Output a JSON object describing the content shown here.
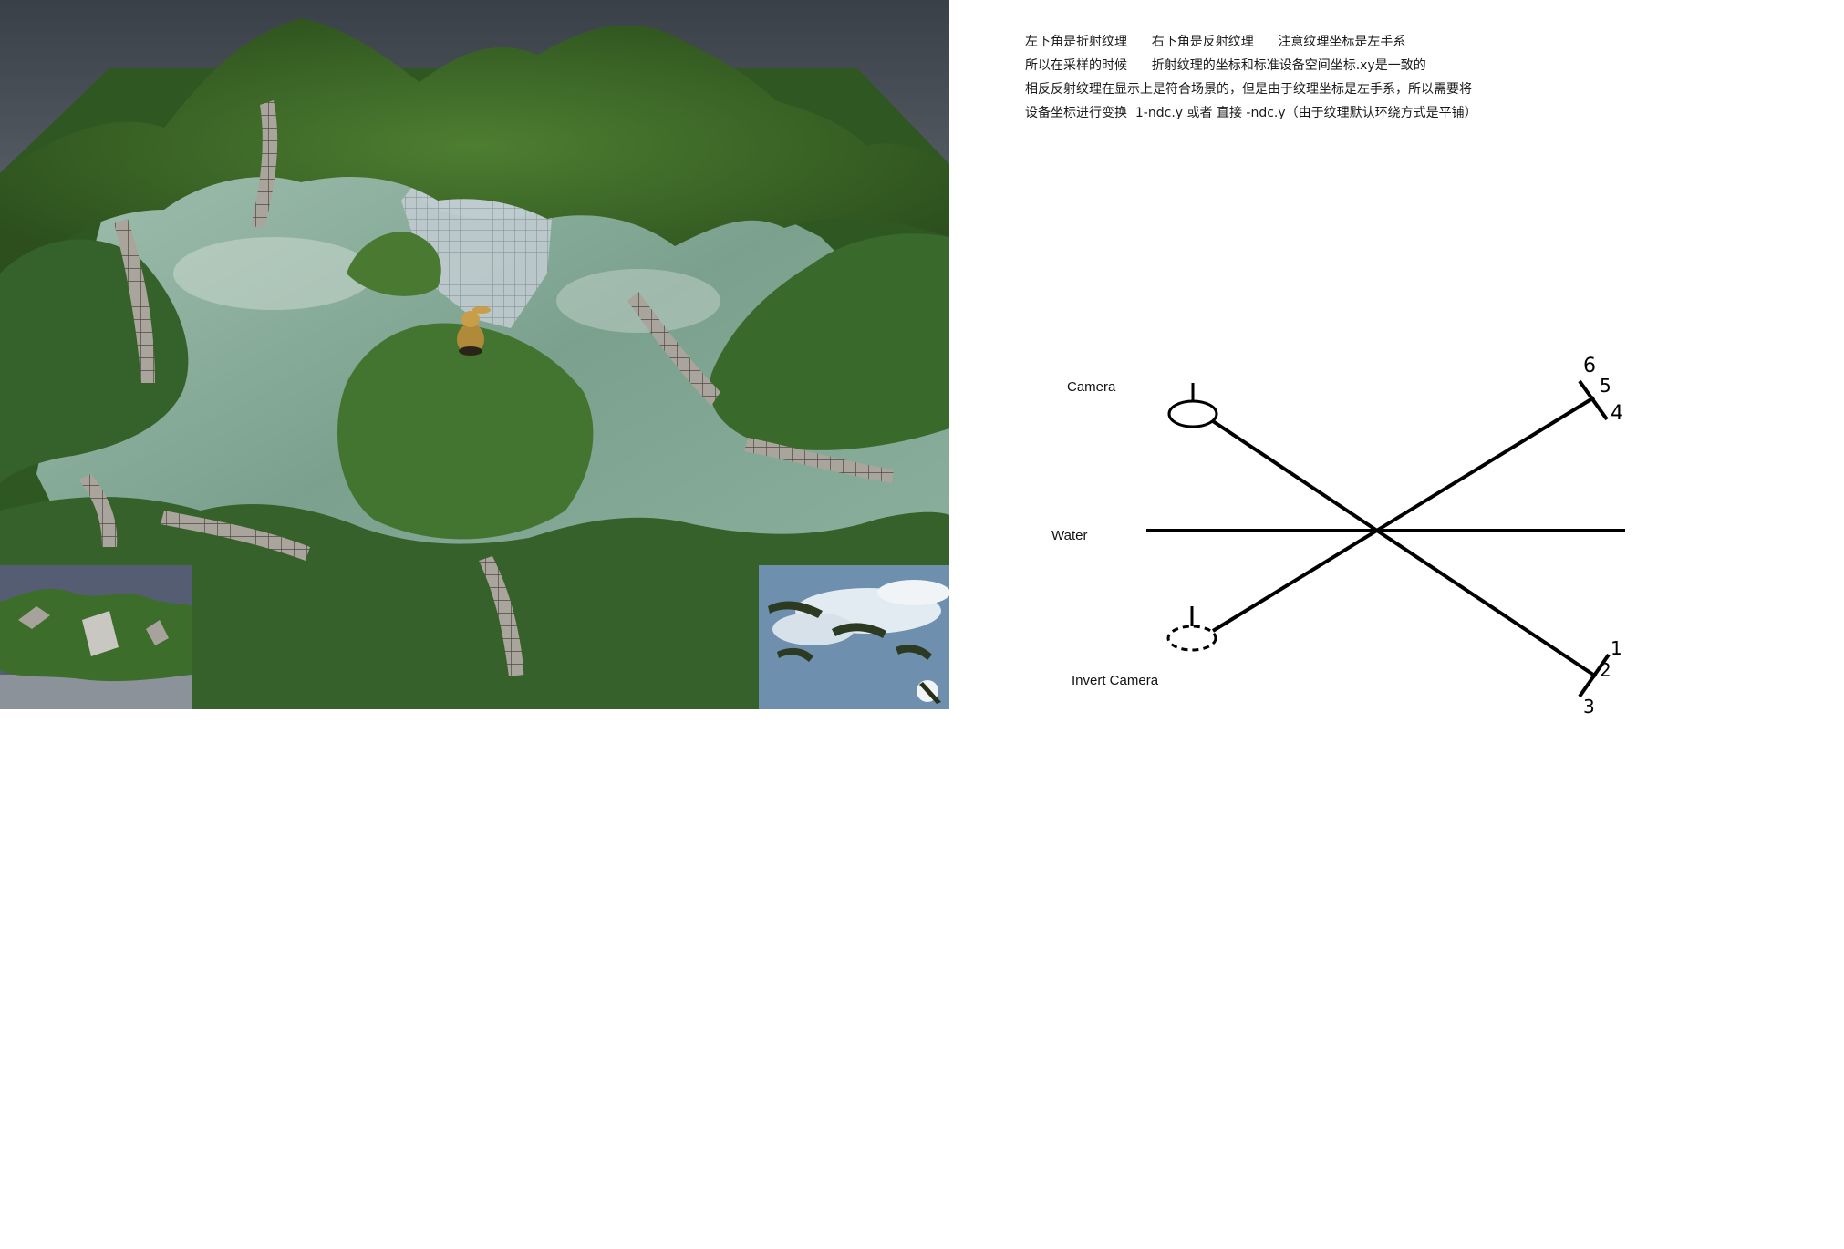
{
  "viewport": {
    "insets": {
      "refraction": "refraction-texture",
      "reflection": "reflection-texture"
    },
    "colors": {
      "grass": "#3f6d2a",
      "water": "#8fb2a2",
      "sky": "#5a646e",
      "rock": "#9c968c"
    }
  },
  "notes": {
    "lines": [
      "左下角是折射纹理      右下角是反射纹理      注意纹理坐标是左手系",
      "所以在采样的时候      折射纹理的坐标和标准设备空间坐标.xy是一致的",
      "相反反射纹理在显示上是符合场景的，但是由于纹理坐标是左手系，所以需要将",
      "设备坐标进行变换  1-ndc.y 或者 直接 -ndc.y（由于纹理默认环绕方式是平铺）"
    ]
  },
  "diagram": {
    "camera_label": "Camera",
    "water_label": "Water",
    "invert_camera_label": "Invert Camera",
    "top_numbers": [
      "6",
      "5",
      "4"
    ],
    "bottom_numbers": [
      "1",
      "2",
      "3"
    ]
  }
}
